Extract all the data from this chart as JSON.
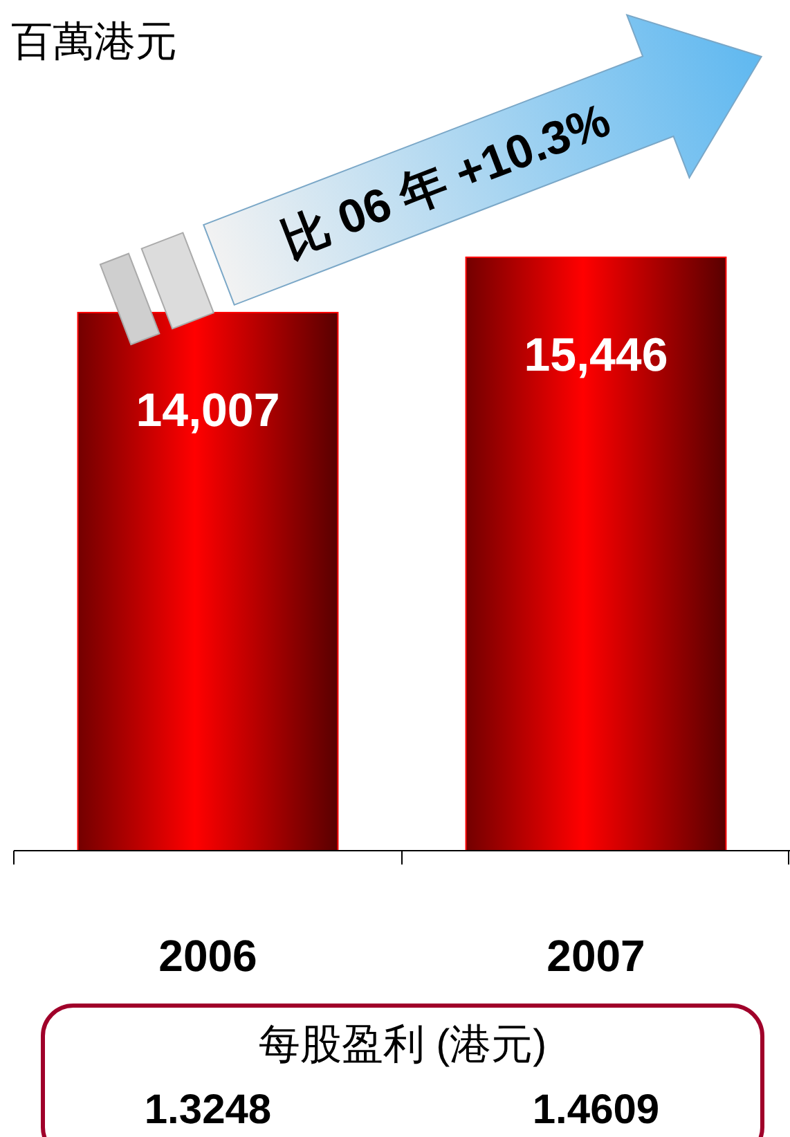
{
  "chart_data": {
    "type": "bar",
    "title": "百萬港元",
    "categories": [
      "2006",
      "2007"
    ],
    "values": [
      14007,
      15446
    ],
    "color": "#ff0000",
    "value_labels": [
      "14,007",
      "15,446"
    ],
    "annotations": [
      "比 06 年 +10.3%",
      "每股盈利 (港元)",
      "1.3248",
      "1.4609"
    ]
  }
}
